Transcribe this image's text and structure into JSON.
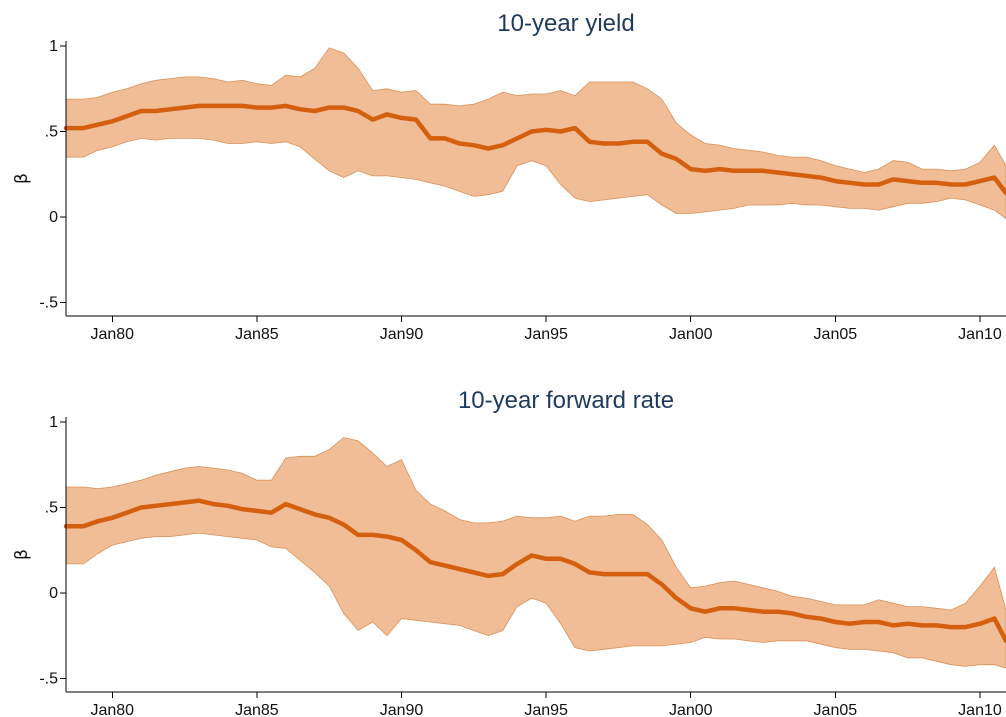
{
  "chart_data": [
    {
      "type": "line",
      "title": "10-year yield",
      "xlabel": "",
      "ylabel": "β",
      "x_ticks": [
        "Jan80",
        "Jan85",
        "Jan90",
        "Jan95",
        "Jan00",
        "Jan05",
        "Jan10"
      ],
      "y_ticks": [
        "-.5",
        "0",
        ".5",
        "1"
      ],
      "y_tick_values": [
        -0.5,
        0,
        0.5,
        1
      ],
      "xlim": [
        1978.4,
        2010.9
      ],
      "ylim": [
        -0.58,
        1.03
      ],
      "grid": false,
      "colors": {
        "line": "#d4600f",
        "band": "#f0bd96",
        "band_edge": "#d9925a",
        "title": "#1e3a5f"
      },
      "series": [
        {
          "x": [
            1978.4,
            1979.0,
            1979.5,
            1980.0,
            1980.5,
            1981.0,
            1981.5,
            1982.0,
            1982.5,
            1983.0,
            1983.5,
            1984.0,
            1984.5,
            1985.0,
            1985.5,
            1986.0,
            1986.5,
            1987.0,
            1987.5,
            1988.0,
            1988.5,
            1989.0,
            1989.5,
            1990.0,
            1990.5,
            1991.0,
            1991.5,
            1992.0,
            1992.5,
            1993.0,
            1993.5,
            1994.0,
            1994.5,
            1995.0,
            1995.5,
            1996.0,
            1996.5,
            1997.0,
            1997.5,
            1998.0,
            1998.5,
            1999.0,
            1999.5,
            2000.0,
            2000.5,
            2001.0,
            2001.5,
            2002.0,
            2002.5,
            2003.0,
            2003.5,
            2004.0,
            2004.5,
            2005.0,
            2005.5,
            2006.0,
            2006.5,
            2007.0,
            2007.5,
            2008.0,
            2008.5,
            2009.0,
            2009.5,
            2010.0,
            2010.5,
            2010.9
          ],
          "value": [
            0.52,
            0.52,
            0.54,
            0.56,
            0.59,
            0.62,
            0.62,
            0.63,
            0.64,
            0.65,
            0.65,
            0.65,
            0.65,
            0.64,
            0.64,
            0.65,
            0.63,
            0.62,
            0.64,
            0.64,
            0.62,
            0.57,
            0.6,
            0.58,
            0.57,
            0.46,
            0.46,
            0.43,
            0.42,
            0.4,
            0.42,
            0.46,
            0.5,
            0.51,
            0.5,
            0.52,
            0.44,
            0.43,
            0.43,
            0.44,
            0.44,
            0.37,
            0.34,
            0.28,
            0.27,
            0.28,
            0.27,
            0.27,
            0.27,
            0.26,
            0.25,
            0.24,
            0.23,
            0.21,
            0.2,
            0.19,
            0.19,
            0.22,
            0.21,
            0.2,
            0.2,
            0.19,
            0.19,
            0.21,
            0.23,
            0.14
          ],
          "upper": [
            0.69,
            0.69,
            0.7,
            0.73,
            0.75,
            0.78,
            0.8,
            0.81,
            0.82,
            0.82,
            0.81,
            0.79,
            0.8,
            0.78,
            0.77,
            0.83,
            0.82,
            0.87,
            0.99,
            0.96,
            0.87,
            0.74,
            0.75,
            0.73,
            0.74,
            0.66,
            0.66,
            0.65,
            0.66,
            0.69,
            0.73,
            0.71,
            0.72,
            0.72,
            0.74,
            0.71,
            0.79,
            0.79,
            0.79,
            0.79,
            0.75,
            0.69,
            0.55,
            0.48,
            0.43,
            0.42,
            0.4,
            0.39,
            0.38,
            0.36,
            0.35,
            0.35,
            0.33,
            0.3,
            0.28,
            0.26,
            0.28,
            0.33,
            0.32,
            0.28,
            0.28,
            0.27,
            0.28,
            0.32,
            0.42,
            0.3
          ],
          "lower": [
            0.35,
            0.35,
            0.39,
            0.41,
            0.44,
            0.46,
            0.45,
            0.46,
            0.46,
            0.46,
            0.45,
            0.43,
            0.43,
            0.44,
            0.43,
            0.44,
            0.41,
            0.34,
            0.27,
            0.23,
            0.27,
            0.24,
            0.24,
            0.23,
            0.22,
            0.2,
            0.18,
            0.15,
            0.12,
            0.13,
            0.15,
            0.3,
            0.33,
            0.3,
            0.19,
            0.11,
            0.09,
            0.1,
            0.11,
            0.12,
            0.13,
            0.07,
            0.02,
            0.02,
            0.03,
            0.04,
            0.05,
            0.07,
            0.07,
            0.07,
            0.08,
            0.07,
            0.07,
            0.06,
            0.05,
            0.05,
            0.04,
            0.06,
            0.08,
            0.08,
            0.09,
            0.11,
            0.1,
            0.07,
            0.04,
            -0.01
          ]
        }
      ]
    },
    {
      "type": "line",
      "title": "10-year forward rate",
      "xlabel": "",
      "ylabel": "β",
      "x_ticks": [
        "Jan80",
        "Jan85",
        "Jan90",
        "Jan95",
        "Jan00",
        "Jan05",
        "Jan10"
      ],
      "y_ticks": [
        "-.5",
        "0",
        ".5",
        "1"
      ],
      "y_tick_values": [
        -0.5,
        0,
        0.5,
        1
      ],
      "xlim": [
        1978.4,
        2010.9
      ],
      "ylim": [
        -0.58,
        1.03
      ],
      "grid": false,
      "colors": {
        "line": "#d4600f",
        "band": "#f0bd96",
        "band_edge": "#d9925a",
        "title": "#1e3a5f"
      },
      "series": [
        {
          "x": [
            1978.4,
            1979.0,
            1979.5,
            1980.0,
            1980.5,
            1981.0,
            1981.5,
            1982.0,
            1982.5,
            1983.0,
            1983.5,
            1984.0,
            1984.5,
            1985.0,
            1985.5,
            1986.0,
            1986.5,
            1987.0,
            1987.5,
            1988.0,
            1988.5,
            1989.0,
            1989.5,
            1990.0,
            1990.5,
            1991.0,
            1991.5,
            1992.0,
            1992.5,
            1993.0,
            1993.5,
            1994.0,
            1994.5,
            1995.0,
            1995.5,
            1996.0,
            1996.5,
            1997.0,
            1997.5,
            1998.0,
            1998.5,
            1999.0,
            1999.5,
            2000.0,
            2000.5,
            2001.0,
            2001.5,
            2002.0,
            2002.5,
            2003.0,
            2003.5,
            2004.0,
            2004.5,
            2005.0,
            2005.5,
            2006.0,
            2006.5,
            2007.0,
            2007.5,
            2008.0,
            2008.5,
            2009.0,
            2009.5,
            2010.0,
            2010.5,
            2010.9
          ],
          "value": [
            0.39,
            0.39,
            0.42,
            0.44,
            0.47,
            0.5,
            0.51,
            0.52,
            0.53,
            0.54,
            0.52,
            0.51,
            0.49,
            0.48,
            0.47,
            0.52,
            0.49,
            0.46,
            0.44,
            0.4,
            0.34,
            0.34,
            0.33,
            0.31,
            0.25,
            0.18,
            0.16,
            0.14,
            0.12,
            0.1,
            0.11,
            0.17,
            0.22,
            0.2,
            0.2,
            0.17,
            0.12,
            0.11,
            0.11,
            0.11,
            0.11,
            0.05,
            -0.03,
            -0.09,
            -0.11,
            -0.09,
            -0.09,
            -0.1,
            -0.11,
            -0.11,
            -0.12,
            -0.14,
            -0.15,
            -0.17,
            -0.18,
            -0.17,
            -0.17,
            -0.19,
            -0.18,
            -0.19,
            -0.19,
            -0.2,
            -0.2,
            -0.18,
            -0.15,
            -0.28
          ],
          "upper": [
            0.62,
            0.62,
            0.61,
            0.62,
            0.64,
            0.66,
            0.69,
            0.71,
            0.73,
            0.74,
            0.73,
            0.72,
            0.7,
            0.66,
            0.66,
            0.79,
            0.8,
            0.8,
            0.84,
            0.91,
            0.89,
            0.82,
            0.74,
            0.78,
            0.6,
            0.52,
            0.48,
            0.43,
            0.41,
            0.41,
            0.42,
            0.45,
            0.44,
            0.44,
            0.45,
            0.42,
            0.45,
            0.45,
            0.46,
            0.46,
            0.4,
            0.31,
            0.15,
            0.03,
            0.04,
            0.06,
            0.07,
            0.05,
            0.03,
            0.01,
            -0.02,
            -0.03,
            -0.05,
            -0.07,
            -0.07,
            -0.07,
            -0.04,
            -0.06,
            -0.08,
            -0.08,
            -0.09,
            -0.1,
            -0.06,
            0.04,
            0.15,
            -0.1
          ],
          "lower": [
            0.17,
            0.17,
            0.23,
            0.28,
            0.3,
            0.32,
            0.33,
            0.33,
            0.34,
            0.35,
            0.34,
            0.33,
            0.32,
            0.31,
            0.27,
            0.26,
            0.19,
            0.12,
            0.04,
            -0.12,
            -0.22,
            -0.17,
            -0.25,
            -0.15,
            -0.16,
            -0.17,
            -0.18,
            -0.19,
            -0.22,
            -0.25,
            -0.22,
            -0.08,
            -0.03,
            -0.06,
            -0.18,
            -0.32,
            -0.34,
            -0.33,
            -0.32,
            -0.31,
            -0.31,
            -0.31,
            -0.3,
            -0.29,
            -0.26,
            -0.27,
            -0.27,
            -0.28,
            -0.29,
            -0.28,
            -0.28,
            -0.28,
            -0.3,
            -0.32,
            -0.33,
            -0.33,
            -0.34,
            -0.35,
            -0.38,
            -0.38,
            -0.4,
            -0.42,
            -0.43,
            -0.42,
            -0.42,
            -0.44
          ]
        }
      ]
    }
  ]
}
